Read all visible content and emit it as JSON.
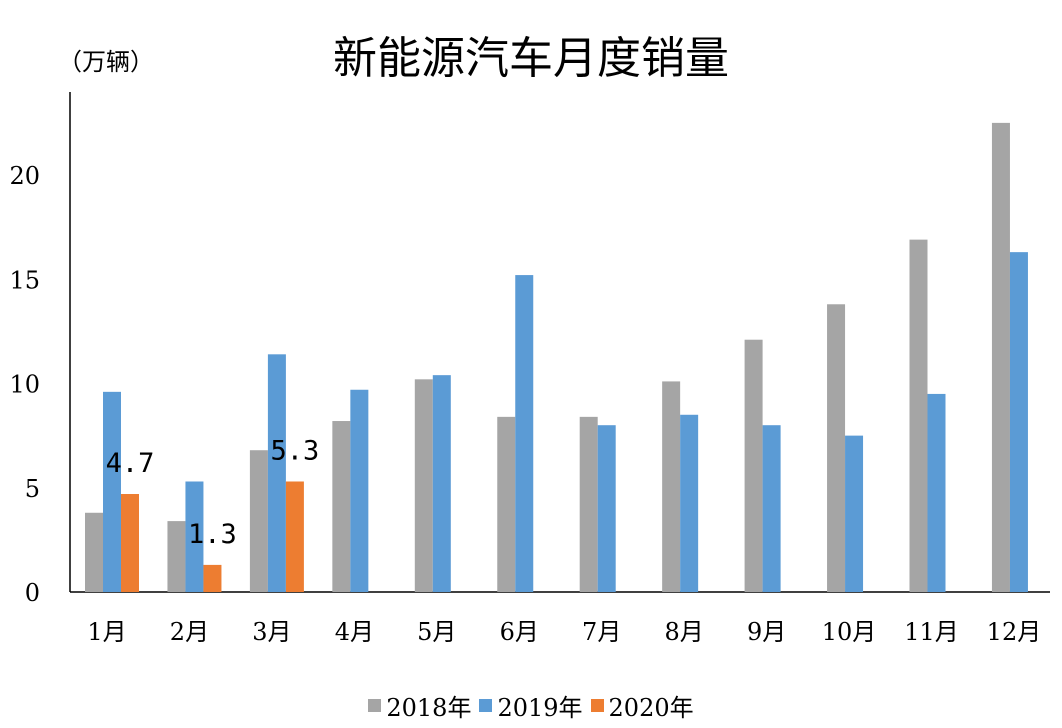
{
  "chart_data": {
    "type": "bar",
    "title": "新能源汽车月度销量",
    "ylabel": "（万辆）",
    "xlabel": "",
    "categories": [
      "1月",
      "2月",
      "3月",
      "4月",
      "5月",
      "6月",
      "7月",
      "8月",
      "9月",
      "10月",
      "11月",
      "12月"
    ],
    "series": [
      {
        "name": "2018年",
        "color": "#a5a5a5",
        "values": [
          3.8,
          3.4,
          6.8,
          8.2,
          10.2,
          8.4,
          8.4,
          10.1,
          12.1,
          13.8,
          16.9,
          22.5
        ]
      },
      {
        "name": "2019年",
        "color": "#5b9bd5",
        "values": [
          9.6,
          5.3,
          11.4,
          9.7,
          10.4,
          15.2,
          8.0,
          8.5,
          8.0,
          7.5,
          9.5,
          16.3
        ]
      },
      {
        "name": "2020年",
        "color": "#ed7d31",
        "values": [
          4.7,
          1.3,
          5.3,
          null,
          null,
          null,
          null,
          null,
          null,
          null,
          null,
          null
        ],
        "data_labels": [
          "4.7",
          "1.3",
          "5.3"
        ]
      }
    ],
    "ylim": [
      0,
      22.5
    ],
    "yticks": [
      0,
      5,
      10,
      15,
      20
    ],
    "grid": false,
    "legend": "bottom"
  }
}
